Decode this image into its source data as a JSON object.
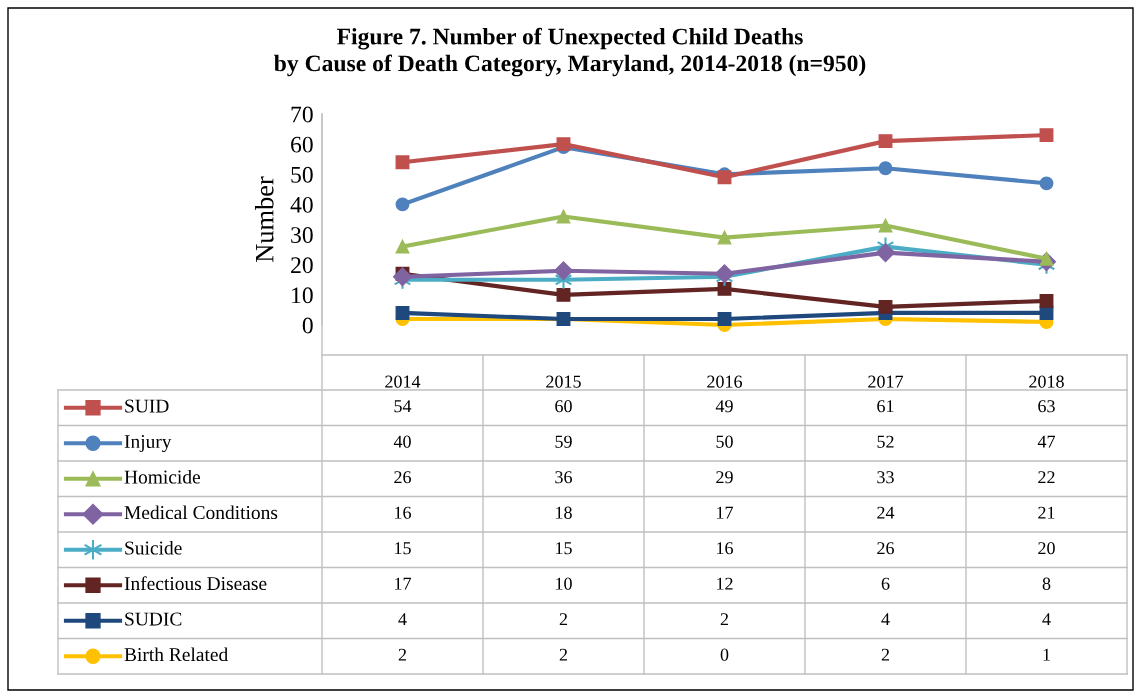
{
  "chart_data": {
    "type": "line",
    "title": "Figure 7. Number of Unexpected Child Deaths\nby Cause of Death Category, Maryland, 2014-2018 (n=950)",
    "ylabel": "Number",
    "categories": [
      "2014",
      "2015",
      "2016",
      "2017",
      "2018"
    ],
    "series": [
      {
        "name": "SUID",
        "color": "#c0504d",
        "marker": "square",
        "values": [
          54,
          60,
          49,
          61,
          63
        ]
      },
      {
        "name": "Injury",
        "color": "#4f81bd",
        "marker": "circle",
        "values": [
          40,
          59,
          50,
          52,
          47
        ]
      },
      {
        "name": "Homicide",
        "color": "#9bbb59",
        "marker": "triangle",
        "values": [
          26,
          36,
          29,
          33,
          22
        ]
      },
      {
        "name": "Medical Conditions",
        "color": "#8064a2",
        "marker": "diamond",
        "values": [
          16,
          18,
          17,
          24,
          21
        ]
      },
      {
        "name": "Suicide",
        "color": "#4bacc6",
        "marker": "cross",
        "values": [
          15,
          15,
          16,
          26,
          20
        ]
      },
      {
        "name": "Infectious Disease",
        "color": "#632523",
        "marker": "square",
        "values": [
          17,
          10,
          12,
          6,
          8
        ]
      },
      {
        "name": "SUDIC",
        "color": "#1f497d",
        "marker": "square",
        "values": [
          4,
          2,
          2,
          4,
          4
        ]
      },
      {
        "name": "Birth Related",
        "color": "#ffc000",
        "marker": "circle",
        "values": [
          2,
          2,
          0,
          2,
          1
        ]
      }
    ],
    "ylim": [
      0,
      70
    ],
    "yticks": [
      0,
      10,
      20,
      30,
      40,
      50,
      60,
      70
    ],
    "data_labels": true,
    "legend": "bottom",
    "grid": false
  }
}
